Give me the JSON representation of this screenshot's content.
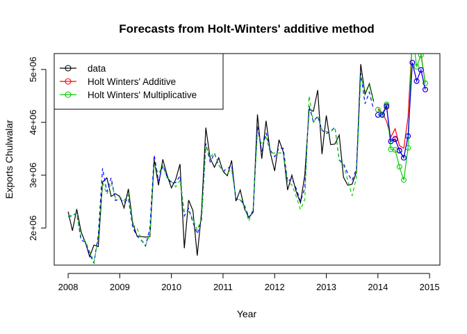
{
  "chart_data": {
    "type": "line",
    "title": "Forecasts from Holt-Winters' additive method",
    "xlabel": "Year",
    "ylabel": "Exports Chulwalar",
    "xlim": [
      2007.73,
      2015.2
    ],
    "ylim": [
      1300000,
      5300000
    ],
    "x_ticks": [
      2008,
      2009,
      2010,
      2011,
      2012,
      2013,
      2014,
      2015
    ],
    "x_tick_labels": [
      "2008",
      "2009",
      "2010",
      "2011",
      "2012",
      "2013",
      "2014",
      "2015"
    ],
    "y_ticks": [
      2000000,
      3000000,
      4000000,
      5000000
    ],
    "y_tick_labels": [
      "2e+06",
      "3e+06",
      "4e+06",
      "5e+06"
    ],
    "legend": {
      "position": "top-left",
      "entries": [
        {
          "label": "data",
          "color": "#000000"
        },
        {
          "label": "Holt Winters' Additive",
          "color": "#ff0000"
        },
        {
          "label": "Holt Winters' Multiplicative",
          "color": "#00cc00"
        }
      ]
    },
    "series": [
      {
        "name": "data",
        "color": "#000000",
        "style": "solid",
        "start": 2008.0,
        "values": [
          2310000,
          1950000,
          2360000,
          1930000,
          1730000,
          1460000,
          1680000,
          1650000,
          2870000,
          2950000,
          2600000,
          2650000,
          2600000,
          2380000,
          2740000,
          2100000,
          1850000,
          1840000,
          1830000,
          1840000,
          3290000,
          2810000,
          3300000,
          3000000,
          2760000,
          2920000,
          3210000,
          1620000,
          2530000,
          2330000,
          1480000,
          2300000,
          3900000,
          3320000,
          3150000,
          3330000,
          3070000,
          2990000,
          3280000,
          2510000,
          2720000,
          2360000,
          2200000,
          2300000,
          4150000,
          3310000,
          4030000,
          3420000,
          3080000,
          3670000,
          3440000,
          2720000,
          3000000,
          2690000,
          2480000,
          3000000,
          4240000,
          4210000,
          4610000,
          3400000,
          4130000,
          3580000,
          3590000,
          3760000,
          2960000,
          2810000,
          2830000,
          3060000,
          5100000,
          4530000,
          4730000,
          4400000
        ]
      },
      {
        "name": "fitted-additive",
        "color": "#0000ff",
        "style": "dashed",
        "start": 2008.0,
        "values": [
          2210000,
          2250000,
          2280000,
          1770000,
          1740000,
          1500000,
          1340000,
          1870000,
          3130000,
          2690000,
          2950000,
          2520000,
          2560000,
          2480000,
          2560000,
          2010000,
          1850000,
          1770000,
          1660000,
          2000000,
          3380000,
          2890000,
          3180000,
          2970000,
          2850000,
          2860000,
          2990000,
          2230000,
          2370000,
          2110000,
          1890000,
          2150000,
          3600000,
          3250000,
          3410000,
          3190000,
          3080000,
          3120000,
          3190000,
          2550000,
          2540000,
          2430000,
          2200000,
          2320000,
          3930000,
          3450000,
          3800000,
          3470000,
          3350000,
          3510000,
          3510000,
          2880000,
          2940000,
          2750000,
          2500000,
          2760000,
          4310000,
          4010000,
          4120000,
          3850000,
          3790000,
          3830000,
          3910000,
          3290000,
          3220000,
          3030000,
          2900000,
          3120000,
          4930000,
          4350000,
          4570000,
          4240000
        ]
      },
      {
        "name": "fitted-multiplicative",
        "color": "#00cc00",
        "style": "dashed",
        "start": 2008.0,
        "values": [
          2220000,
          2220000,
          2290000,
          1830000,
          1750000,
          1560000,
          1360000,
          1800000,
          2870000,
          2640000,
          2860000,
          2570000,
          2590000,
          2520000,
          2630000,
          2070000,
          2000000,
          1780000,
          1680000,
          1880000,
          3210000,
          3030000,
          3180000,
          2950000,
          2880000,
          2780000,
          2900000,
          2310000,
          2320000,
          2170000,
          1960000,
          2190000,
          3540000,
          3340000,
          3430000,
          3190000,
          3080000,
          3040000,
          3110000,
          2570000,
          2530000,
          2400000,
          2130000,
          2380000,
          3830000,
          3570000,
          3720000,
          3420000,
          3420000,
          3420000,
          3420000,
          2860000,
          2820000,
          2600000,
          2350000,
          2540000,
          4500000,
          4000000,
          4100000,
          3860000,
          3820000,
          3820000,
          3900000,
          3280000,
          3200000,
          2900000,
          2610000,
          2960000,
          4870000,
          4570000,
          4700000,
          4380000
        ]
      },
      {
        "name": "Holt Winters' Additive",
        "color": "#ff0000",
        "style": "solid",
        "markers": "circle",
        "start": 2014.0,
        "values": [
          4140000,
          4140000,
          4290000,
          3640000,
          3690000,
          3460000,
          3330000,
          3740000,
          5130000,
          4780000,
          4990000,
          4620000
        ]
      },
      {
        "name": "Holt Winters' Additive overlay",
        "color": "#ff0000",
        "style": "solid",
        "markers": "none",
        "start": 2014.0,
        "values": [
          4260000,
          4180000,
          4020000,
          3720000,
          3880000,
          3560000,
          3510000,
          4100000,
          5600000,
          5400000,
          5300000,
          4750000
        ]
      },
      {
        "name": "Holt Winters' Multiplicative",
        "color": "#00cc00",
        "style": "solid",
        "markers": "circle",
        "start": 2014.0,
        "values": [
          4240000,
          4150000,
          4340000,
          3490000,
          3480000,
          3160000,
          2910000,
          3520000,
          5700000,
          5050000,
          5270000,
          4740000
        ]
      },
      {
        "name": "forecast-blue",
        "color": "#0000ff",
        "style": "solid",
        "markers": "circle",
        "start": 2014.0,
        "values": [
          4140000,
          4140000,
          4310000,
          3640000,
          3680000,
          3470000,
          3330000,
          3740000,
          5130000,
          4780000,
          4990000,
          4620000
        ]
      }
    ]
  }
}
